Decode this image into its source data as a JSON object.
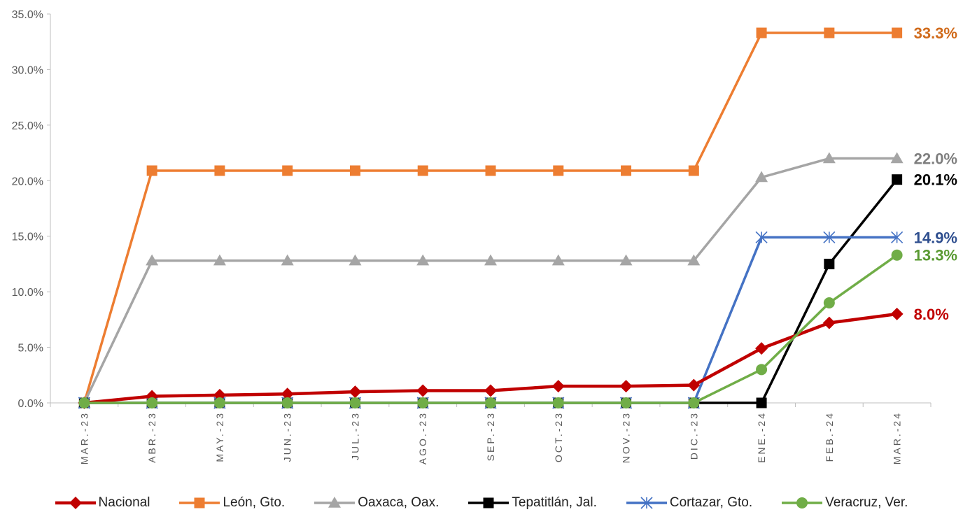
{
  "chart_data": {
    "type": "line",
    "title": "",
    "xlabel": "",
    "ylabel": "",
    "x": [
      "MAR.-23",
      "ABR.-23",
      "MAY.-23",
      "JUN.-23",
      "JUL.-23",
      "AGO.-23",
      "SEP.-23",
      "OCT.-23",
      "NOV.-23",
      "DIC.-23",
      "ENE.-24",
      "FEB.-24",
      "MAR.-24"
    ],
    "ylim": [
      0,
      35
    ],
    "yticks": [
      "0.0%",
      "5.0%",
      "10.0%",
      "15.0%",
      "20.0%",
      "25.0%",
      "30.0%",
      "35.0%"
    ],
    "grid": false,
    "legend_position": "bottom",
    "series": [
      {
        "name": "Nacional",
        "color": "#C00000",
        "marker": "diamond",
        "values": [
          0,
          0.6,
          0.7,
          0.8,
          1.0,
          1.1,
          1.1,
          1.5,
          1.5,
          1.6,
          4.9,
          7.2,
          8.0
        ],
        "end_label": "8.0%"
      },
      {
        "name": "León, Gto.",
        "color": "#ED7D31",
        "marker": "square",
        "values": [
          0,
          20.9,
          20.9,
          20.9,
          20.9,
          20.9,
          20.9,
          20.9,
          20.9,
          20.9,
          33.3,
          33.3,
          33.3
        ],
        "end_label": "33.3%"
      },
      {
        "name": "Oaxaca, Oax.",
        "color": "#A5A5A5",
        "marker": "triangle",
        "values": [
          0,
          12.8,
          12.8,
          12.8,
          12.8,
          12.8,
          12.8,
          12.8,
          12.8,
          12.8,
          20.3,
          22.0,
          22.0
        ],
        "end_label": "22.0%"
      },
      {
        "name": "Tepatitlán, Jal.",
        "color": "#000000",
        "marker": "square",
        "values": [
          0,
          0,
          0,
          0,
          0,
          0,
          0,
          0,
          0,
          0,
          0,
          12.5,
          20.1
        ],
        "end_label": "20.1%"
      },
      {
        "name": "Cortazar, Gto.",
        "color": "#4472C4",
        "marker": "star",
        "values": [
          0,
          0,
          0,
          0,
          0,
          0,
          0,
          0,
          0,
          0,
          14.9,
          14.9,
          14.9
        ],
        "end_label": "14.9%"
      },
      {
        "name": "Veracruz, Ver.",
        "color": "#70AD47",
        "marker": "circle",
        "values": [
          0,
          0,
          0,
          0,
          0,
          0,
          0,
          0,
          0,
          0,
          3.0,
          9.0,
          13.3
        ],
        "end_label": "13.3%"
      }
    ],
    "end_label_colors": {
      "Nacional": "#C00000",
      "León, Gto.": "#D06A1A",
      "Oaxaca, Oax.": "#7F7F7F",
      "Tepatitlán, Jal.": "#000000",
      "Cortazar, Gto.": "#2F4F8F",
      "Veracruz, Ver.": "#5A9A32"
    },
    "draw_order": [
      "León, Gto.",
      "Oaxaca, Oax.",
      "Tepatitlán, Jal.",
      "Cortazar, Gto.",
      "Nacional",
      "Veracruz, Ver."
    ]
  }
}
